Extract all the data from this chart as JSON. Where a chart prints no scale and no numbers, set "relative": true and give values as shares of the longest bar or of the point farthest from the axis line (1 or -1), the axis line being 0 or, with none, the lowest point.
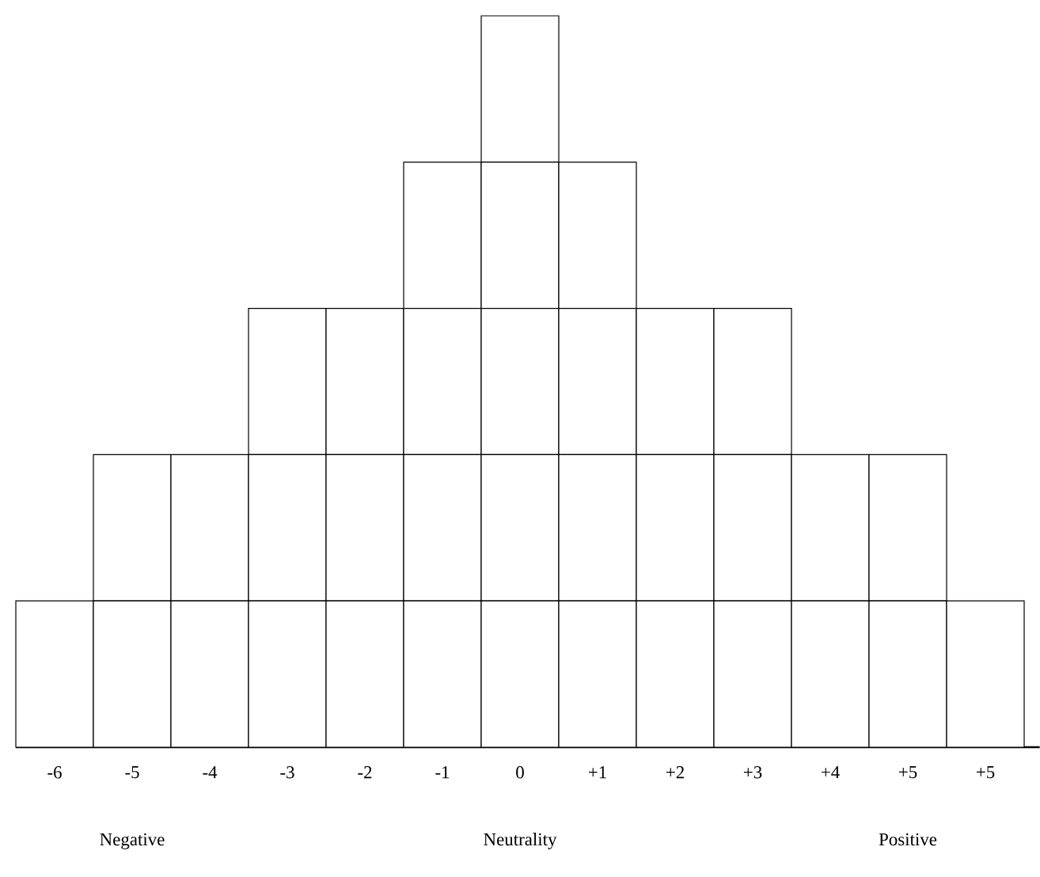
{
  "chart_data": {
    "type": "bar",
    "stacked": true,
    "relative": true,
    "categories": [
      "-6",
      "-5",
      "-4",
      "-3",
      "-2",
      "-1",
      "0",
      "+1",
      "+2",
      "+3",
      "+4",
      "+5",
      "+5"
    ],
    "series": [
      {
        "color": "#ffffff",
        "values": [
          0.2,
          0.2,
          0.2,
          0.2,
          0.2,
          0.2,
          0.2,
          0.2,
          0.2,
          0.2,
          0.2,
          0.2,
          0.2
        ]
      },
      {
        "color": "#ffffff",
        "values": [
          null,
          0.2,
          0.2,
          0.2,
          0.2,
          0.2,
          0.2,
          0.2,
          0.2,
          0.2,
          0.2,
          0.2,
          null
        ]
      },
      {
        "color": "#ffffff",
        "values": [
          null,
          null,
          null,
          0.2,
          0.2,
          0.2,
          0.2,
          0.2,
          0.2,
          0.2,
          null,
          null,
          null
        ]
      },
      {
        "color": "#ffffff",
        "values": [
          null,
          null,
          null,
          null,
          null,
          0.2,
          0.2,
          0.2,
          null,
          null,
          null,
          null,
          null
        ]
      },
      {
        "color": "#ffffff",
        "values": [
          null,
          null,
          null,
          null,
          null,
          null,
          0.2,
          null,
          null,
          null,
          null,
          null,
          null
        ]
      }
    ],
    "annotations": [
      "Negative",
      "Neutrality",
      "Positive"
    ]
  }
}
